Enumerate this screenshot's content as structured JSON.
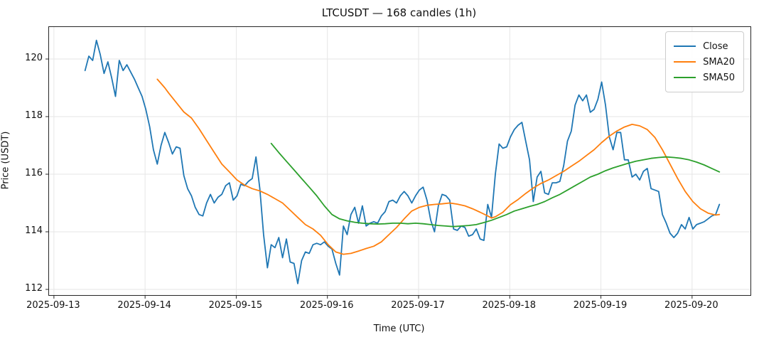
{
  "chart_data": {
    "type": "line",
    "title": "LTCUSDT — 168 candles (1h)",
    "xlabel": "Time (UTC)",
    "ylabel": "Price (USDT)",
    "x_tick_labels": [
      "2025-09-13",
      "2025-09-14",
      "2025-09-15",
      "2025-09-16",
      "2025-09-17",
      "2025-09-18",
      "2025-09-19",
      "2025-09-20"
    ],
    "x_tick_hours": [
      -8.2,
      15.8,
      39.8,
      63.8,
      87.8,
      111.8,
      135.8,
      159.8
    ],
    "y_ticks": [
      112,
      114,
      116,
      118,
      120
    ],
    "ylim": [
      111.8,
      121.1
    ],
    "xlim_hours": [
      -9.5,
      175.2
    ],
    "grid": true,
    "legend_position": "upper right",
    "frame_color": "#262626",
    "grid_color": "#e6e6e6",
    "series": [
      {
        "name": "Close",
        "color": "#1f77b4",
        "sampling": "hourly_from_start",
        "start_hour": 0,
        "values": [
          119.6,
          120.1,
          119.95,
          120.65,
          120.15,
          119.5,
          119.9,
          119.35,
          118.7,
          119.95,
          119.6,
          119.8,
          119.55,
          119.3,
          119.0,
          118.7,
          118.25,
          117.65,
          116.85,
          116.35,
          117.0,
          117.45,
          117.1,
          116.7,
          116.95,
          116.9,
          115.95,
          115.5,
          115.25,
          114.85,
          114.6,
          114.55,
          115.0,
          115.3,
          115.0,
          115.2,
          115.3,
          115.6,
          115.7,
          115.1,
          115.25,
          115.65,
          115.6,
          115.75,
          115.85,
          116.6,
          115.5,
          113.9,
          112.75,
          113.55,
          113.45,
          113.8,
          113.1,
          113.75,
          112.95,
          112.9,
          112.2,
          113.0,
          113.3,
          113.25,
          113.55,
          113.6,
          113.55,
          113.65,
          113.5,
          113.4,
          112.9,
          112.5,
          114.2,
          113.9,
          114.6,
          114.85,
          114.3,
          114.9,
          114.2,
          114.3,
          114.35,
          114.3,
          114.55,
          114.7,
          115.05,
          115.1,
          115.0,
          115.25,
          115.4,
          115.25,
          115.0,
          115.25,
          115.45,
          115.55,
          115.1,
          114.4,
          114.0,
          114.9,
          115.3,
          115.25,
          115.1,
          114.1,
          114.05,
          114.2,
          114.15,
          113.85,
          113.9,
          114.1,
          113.75,
          113.7,
          114.95,
          114.5,
          116.0,
          117.05,
          116.9,
          116.95,
          117.3,
          117.55,
          117.7,
          117.8,
          117.15,
          116.5,
          115.05,
          115.9,
          116.1,
          115.35,
          115.3,
          115.7,
          115.7,
          115.75,
          116.3,
          117.15,
          117.5,
          118.4,
          118.75,
          118.55,
          118.75,
          118.15,
          118.25,
          118.6,
          119.2,
          118.4,
          117.3,
          116.85,
          117.45,
          117.45,
          116.5,
          116.5,
          115.9,
          116.0,
          115.8,
          116.1,
          116.2,
          115.5,
          115.45,
          115.4,
          114.6,
          114.3,
          113.95,
          113.8,
          113.95,
          114.25,
          114.1,
          114.5,
          114.1,
          114.25,
          114.3,
          114.35,
          114.45,
          114.55,
          114.6,
          114.95
        ]
      },
      {
        "name": "SMA20",
        "color": "#ff7f0e",
        "sampling": "points_hour_price",
        "points": [
          [
            19,
            119.3
          ],
          [
            20,
            119.15
          ],
          [
            21,
            119.0
          ],
          [
            22,
            118.82
          ],
          [
            24,
            118.49
          ],
          [
            26,
            118.16
          ],
          [
            28,
            117.95
          ],
          [
            30,
            117.58
          ],
          [
            32,
            117.17
          ],
          [
            34,
            116.76
          ],
          [
            36,
            116.35
          ],
          [
            38,
            116.08
          ],
          [
            40,
            115.8
          ],
          [
            42,
            115.62
          ],
          [
            44,
            115.5
          ],
          [
            46,
            115.42
          ],
          [
            48,
            115.3
          ],
          [
            50,
            115.15
          ],
          [
            52,
            115.0
          ],
          [
            54,
            114.75
          ],
          [
            56,
            114.5
          ],
          [
            58,
            114.25
          ],
          [
            60,
            114.1
          ],
          [
            62,
            113.88
          ],
          [
            64,
            113.55
          ],
          [
            66,
            113.3
          ],
          [
            68,
            113.22
          ],
          [
            70,
            113.25
          ],
          [
            72,
            113.33
          ],
          [
            74,
            113.42
          ],
          [
            76,
            113.5
          ],
          [
            78,
            113.65
          ],
          [
            80,
            113.9
          ],
          [
            82,
            114.15
          ],
          [
            84,
            114.45
          ],
          [
            86,
            114.72
          ],
          [
            88,
            114.85
          ],
          [
            90,
            114.92
          ],
          [
            92,
            114.95
          ],
          [
            94,
            114.97
          ],
          [
            96,
            115.0
          ],
          [
            98,
            114.96
          ],
          [
            100,
            114.9
          ],
          [
            102,
            114.8
          ],
          [
            104,
            114.68
          ],
          [
            106,
            114.55
          ],
          [
            107,
            114.48
          ],
          [
            108,
            114.52
          ],
          [
            110,
            114.68
          ],
          [
            112,
            114.94
          ],
          [
            114,
            115.12
          ],
          [
            116,
            115.33
          ],
          [
            118,
            115.52
          ],
          [
            120,
            115.68
          ],
          [
            122,
            115.8
          ],
          [
            124,
            115.95
          ],
          [
            126,
            116.1
          ],
          [
            128,
            116.28
          ],
          [
            130,
            116.45
          ],
          [
            132,
            116.65
          ],
          [
            134,
            116.85
          ],
          [
            136,
            117.1
          ],
          [
            138,
            117.32
          ],
          [
            140,
            117.5
          ],
          [
            142,
            117.64
          ],
          [
            144,
            117.73
          ],
          [
            146,
            117.68
          ],
          [
            148,
            117.55
          ],
          [
            150,
            117.28
          ],
          [
            152,
            116.85
          ],
          [
            154,
            116.35
          ],
          [
            156,
            115.85
          ],
          [
            158,
            115.4
          ],
          [
            160,
            115.05
          ],
          [
            162,
            114.8
          ],
          [
            164,
            114.65
          ],
          [
            166,
            114.58
          ],
          [
            167,
            114.6
          ]
        ]
      },
      {
        "name": "SMA50",
        "color": "#2ca02c",
        "sampling": "points_hour_price",
        "points": [
          [
            49,
            117.07
          ],
          [
            51,
            116.75
          ],
          [
            53,
            116.45
          ],
          [
            55,
            116.15
          ],
          [
            57,
            115.85
          ],
          [
            59,
            115.55
          ],
          [
            61,
            115.25
          ],
          [
            63,
            114.9
          ],
          [
            65,
            114.6
          ],
          [
            67,
            114.45
          ],
          [
            69,
            114.38
          ],
          [
            71,
            114.33
          ],
          [
            73,
            114.3
          ],
          [
            75,
            114.28
          ],
          [
            77,
            114.27
          ],
          [
            79,
            114.28
          ],
          [
            81,
            114.3
          ],
          [
            83,
            114.3
          ],
          [
            85,
            114.28
          ],
          [
            87,
            114.3
          ],
          [
            89,
            114.28
          ],
          [
            91,
            114.25
          ],
          [
            93,
            114.22
          ],
          [
            95,
            114.2
          ],
          [
            97,
            114.18
          ],
          [
            99,
            114.2
          ],
          [
            101,
            114.22
          ],
          [
            103,
            114.25
          ],
          [
            105,
            114.32
          ],
          [
            107,
            114.4
          ],
          [
            109,
            114.5
          ],
          [
            111,
            114.6
          ],
          [
            113,
            114.72
          ],
          [
            115,
            114.8
          ],
          [
            117,
            114.88
          ],
          [
            119,
            114.95
          ],
          [
            121,
            115.05
          ],
          [
            123,
            115.18
          ],
          [
            125,
            115.3
          ],
          [
            127,
            115.45
          ],
          [
            129,
            115.6
          ],
          [
            131,
            115.75
          ],
          [
            133,
            115.9
          ],
          [
            135,
            116.0
          ],
          [
            137,
            116.12
          ],
          [
            139,
            116.22
          ],
          [
            141,
            116.3
          ],
          [
            143,
            116.38
          ],
          [
            145,
            116.45
          ],
          [
            147,
            116.5
          ],
          [
            149,
            116.55
          ],
          [
            151,
            116.58
          ],
          [
            153,
            116.6
          ],
          [
            155,
            116.58
          ],
          [
            157,
            116.55
          ],
          [
            159,
            116.5
          ],
          [
            161,
            116.42
          ],
          [
            163,
            116.32
          ],
          [
            165,
            116.2
          ],
          [
            167,
            116.08
          ]
        ]
      }
    ]
  }
}
